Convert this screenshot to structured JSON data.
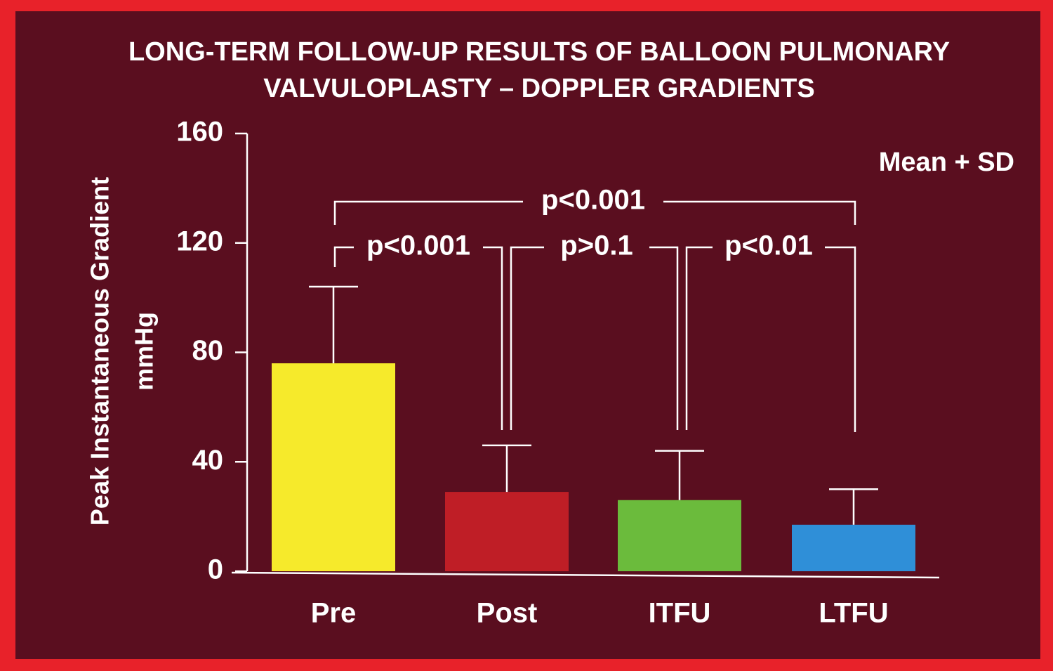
{
  "chart_data": {
    "type": "bar",
    "title": [
      "LONG-TERM FOLLOW-UP RESULTS OF BALLOON PULMONARY",
      "VALVULOPLASTY – DOPPLER GRADIENTS"
    ],
    "ylabel": [
      "Peak Instantaneous Gradient",
      "mmHg"
    ],
    "note": "Mean + SD",
    "categories": [
      "Pre",
      "Post",
      "ITFU",
      "LTFU"
    ],
    "values": [
      76,
      29,
      26,
      17
    ],
    "errors": [
      28,
      17,
      18,
      13
    ],
    "colors": [
      "#f6ea2b",
      "#bf1e26",
      "#6bbb3c",
      "#2f8fd8"
    ],
    "comparisons": [
      "p<0.001",
      "p>0.1",
      "p<0.01",
      "p<0.001"
    ],
    "ylim": [
      0,
      160
    ],
    "yticks": [
      0,
      40,
      80,
      120,
      160
    ]
  }
}
